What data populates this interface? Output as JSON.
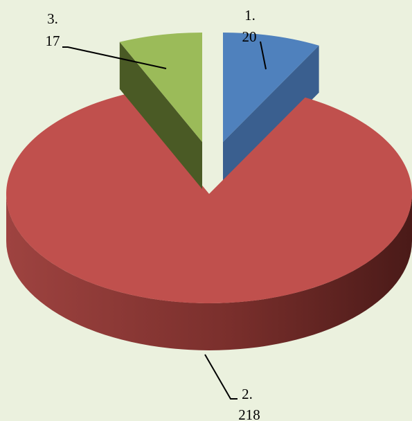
{
  "chart_data": {
    "type": "pie",
    "style": "3d-exploded",
    "background": "#ebf1de",
    "slices": [
      {
        "label": "1.",
        "value": 20,
        "value_label": "20",
        "color": "#4f81bd",
        "side_color": "#3a5f8f"
      },
      {
        "label": "2.",
        "value": 218,
        "value_label": "218",
        "color": "#c0504d",
        "side_color": "#8c3734"
      },
      {
        "label": "3.",
        "value": 17,
        "value_label": "17",
        "color": "#9bbb59",
        "side_color": "#4a5a25"
      }
    ],
    "title": "",
    "legend": "none"
  }
}
